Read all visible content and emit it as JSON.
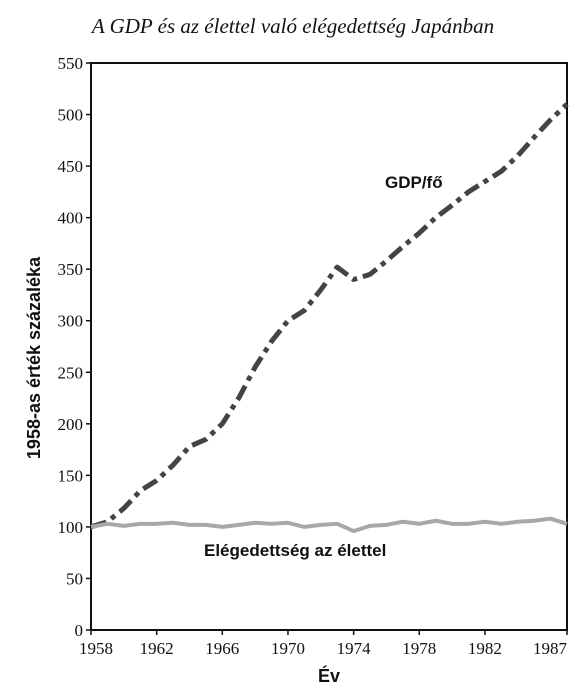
{
  "chart_data": {
    "type": "line",
    "title": "A GDP és az élettel való elégedettség Japánban",
    "xlabel": "Év",
    "ylabel": "1958-as érték százaléka",
    "xlim": [
      1958,
      1987
    ],
    "ylim": [
      0,
      550
    ],
    "x_ticks": [
      "1958",
      "1962",
      "1966",
      "1970",
      "1974",
      "1978",
      "1982",
      "1987"
    ],
    "y_ticks": [
      "0",
      "50",
      "100",
      "150",
      "200",
      "250",
      "300",
      "350",
      "400",
      "450",
      "500",
      "550"
    ],
    "series": [
      {
        "name": "GDP/fő",
        "color": "#444444",
        "style": "dash-dot",
        "x": [
          1958,
          1959,
          1960,
          1961,
          1962,
          1963,
          1964,
          1965,
          1966,
          1967,
          1968,
          1969,
          1970,
          1971,
          1972,
          1973,
          1974,
          1975,
          1976,
          1977,
          1978,
          1979,
          1980,
          1981,
          1982,
          1983,
          1984,
          1985,
          1986,
          1987
        ],
        "values": [
          100,
          105,
          118,
          135,
          145,
          160,
          178,
          185,
          200,
          225,
          255,
          280,
          300,
          310,
          330,
          352,
          340,
          345,
          358,
          372,
          385,
          400,
          412,
          425,
          435,
          445,
          460,
          478,
          495,
          510
        ]
      },
      {
        "name": "Elégedettség az élettel",
        "color": "#a8a8a8",
        "style": "solid",
        "x": [
          1958,
          1959,
          1960,
          1961,
          1962,
          1963,
          1964,
          1965,
          1966,
          1967,
          1968,
          1969,
          1970,
          1971,
          1972,
          1973,
          1974,
          1975,
          1976,
          1977,
          1978,
          1979,
          1980,
          1981,
          1982,
          1983,
          1984,
          1985,
          1986,
          1987
        ],
        "values": [
          100,
          103,
          101,
          103,
          103,
          104,
          102,
          102,
          100,
          102,
          104,
          103,
          104,
          100,
          102,
          103,
          96,
          101,
          102,
          105,
          103,
          106,
          103,
          103,
          105,
          103,
          105,
          106,
          108,
          103
        ]
      }
    ]
  }
}
